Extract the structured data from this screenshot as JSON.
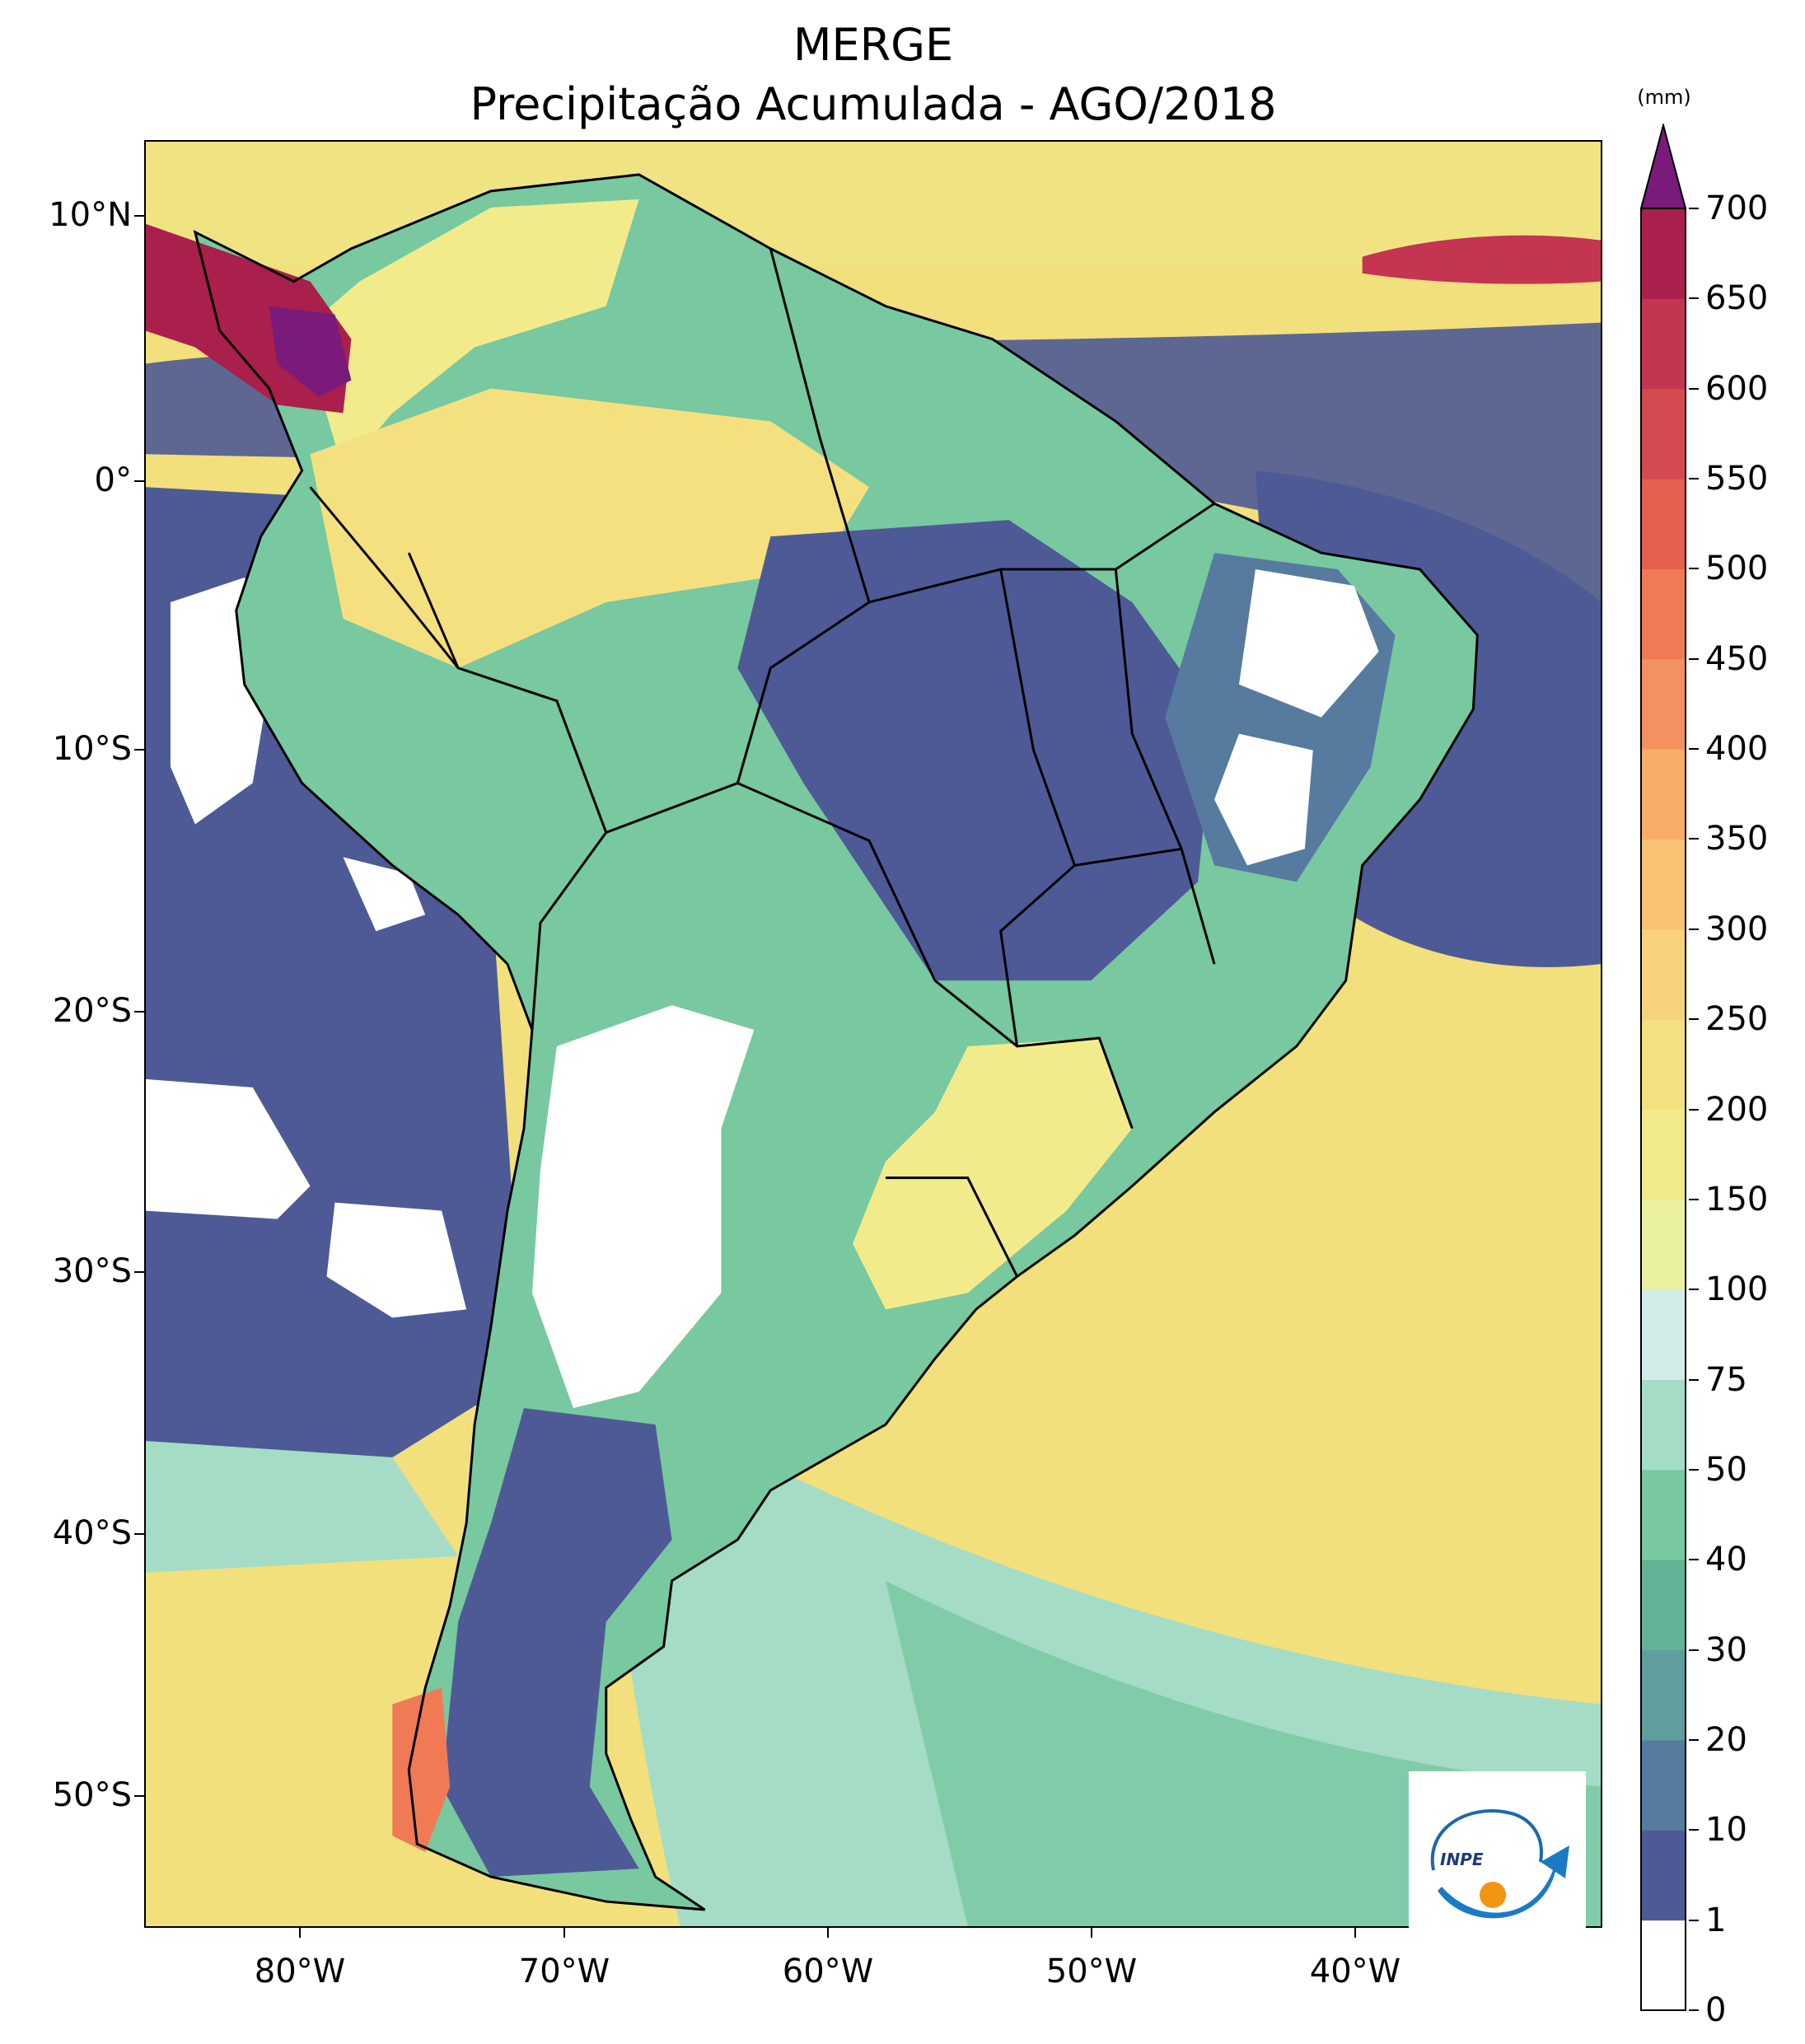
{
  "title": {
    "line1": "MERGE",
    "line2": "Precipitação Acumulada - AGO/2018"
  },
  "map": {
    "lat_ticks": [
      "10°N",
      "0°",
      "10°S",
      "20°S",
      "30°S",
      "40°S",
      "50°S"
    ],
    "lon_ticks": [
      "80°W",
      "70°W",
      "60°W",
      "50°W",
      "40°W"
    ],
    "ocean_color": "#f2e07c",
    "dry_color": "#ffffff",
    "low_color": "#4e5a95"
  },
  "colorbar": {
    "unit": "(mm)",
    "levels": [
      "0",
      "1",
      "10",
      "20",
      "30",
      "40",
      "50",
      "75",
      "100",
      "150",
      "200",
      "250",
      "300",
      "350",
      "400",
      "450",
      "500",
      "550",
      "600",
      "650",
      "700"
    ],
    "colors": [
      "#ffffff",
      "#4e5a95",
      "#577a9f",
      "#5f9e9c",
      "#63b397",
      "#78c8a0",
      "#a4dcc6",
      "#d2ecea",
      "#eaf2a0",
      "#f2eb8c",
      "#f5e080",
      "#f7d27c",
      "#f8c274",
      "#f7ad68",
      "#f49160",
      "#f07a54",
      "#e35f4e",
      "#d44a50",
      "#c33550",
      "#a8204b"
    ],
    "extend_color": "#7a1a7a"
  },
  "logo": {
    "text": "INPE"
  }
}
